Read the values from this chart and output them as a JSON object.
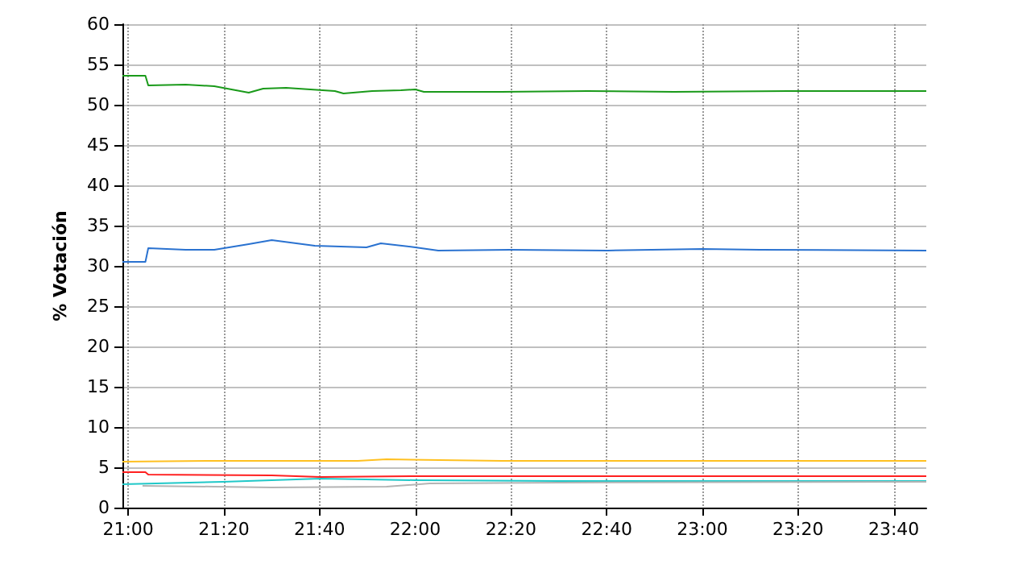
{
  "chart_data": {
    "type": "line",
    "ylabel": "% Votación",
    "xlim": [
      20.98,
      23.78
    ],
    "ylim": [
      0,
      60
    ],
    "yticks": [
      0,
      5,
      10,
      15,
      20,
      25,
      30,
      35,
      40,
      45,
      50,
      55,
      60
    ],
    "xticks": [
      {
        "value": 21,
        "label": "21:00"
      },
      {
        "value": 21.3333,
        "label": "21:20"
      },
      {
        "value": 21.6667,
        "label": "21:40"
      },
      {
        "value": 22,
        "label": "22:00"
      },
      {
        "value": 22.3333,
        "label": "22:20"
      },
      {
        "value": 22.6667,
        "label": "22:40"
      },
      {
        "value": 23,
        "label": "23:00"
      },
      {
        "value": 23.3333,
        "label": "23:20"
      },
      {
        "value": 23.6667,
        "label": "23:40"
      }
    ],
    "grid": true,
    "marker": "none",
    "line_style": "solid",
    "series": [
      {
        "color": "#1a9a1a",
        "x": [
          20.98,
          21.06,
          21.07,
          21.2,
          21.3,
          21.42,
          21.47,
          21.55,
          21.72,
          21.75,
          21.85,
          21.95,
          22.0,
          22.03,
          22.3,
          22.6,
          22.9,
          23.3,
          23.78
        ],
        "values": [
          53.6,
          53.6,
          52.4,
          52.5,
          52.3,
          51.5,
          52,
          52.1,
          51.7,
          51.4,
          51.7,
          51.8,
          51.9,
          51.6,
          51.6,
          51.7,
          51.6,
          51.7,
          51.7
        ]
      },
      {
        "color": "#2a72d0",
        "x": [
          20.98,
          21.06,
          21.07,
          21.2,
          21.3,
          21.42,
          21.5,
          21.65,
          21.83,
          21.88,
          22.0,
          22.08,
          22.33,
          22.67,
          23.0,
          23.2,
          23.78
        ],
        "values": [
          30.5,
          30.5,
          32.2,
          32,
          32,
          32.7,
          33.2,
          32.5,
          32.3,
          32.8,
          32.3,
          31.9,
          32,
          31.9,
          32.1,
          32,
          31.9
        ]
      },
      {
        "color": "#ffc020",
        "x": [
          20.98,
          21.3,
          21.8,
          21.9,
          22.3,
          23.0,
          23.78
        ],
        "values": [
          5.7,
          5.8,
          5.8,
          6,
          5.8,
          5.8,
          5.8
        ]
      },
      {
        "color": "#ff2020",
        "x": [
          20.98,
          21.06,
          21.07,
          21.5,
          21.67,
          22.0,
          22.5,
          23.78
        ],
        "values": [
          4.4,
          4.4,
          4.1,
          4,
          3.8,
          3.9,
          3.9,
          3.9
        ]
      },
      {
        "color": "#20c8c8",
        "x": [
          20.98,
          21.33,
          21.67,
          22.0,
          22.5,
          23.78
        ],
        "values": [
          2.9,
          3.2,
          3.6,
          3.4,
          3.3,
          3.3
        ]
      },
      {
        "color": "#b4b4b4",
        "x": [
          21.05,
          21.3,
          21.5,
          21.9,
          22.05,
          22.5,
          23.78
        ],
        "values": [
          2.7,
          2.6,
          2.5,
          2.6,
          3.0,
          3.1,
          3.2
        ]
      }
    ]
  }
}
